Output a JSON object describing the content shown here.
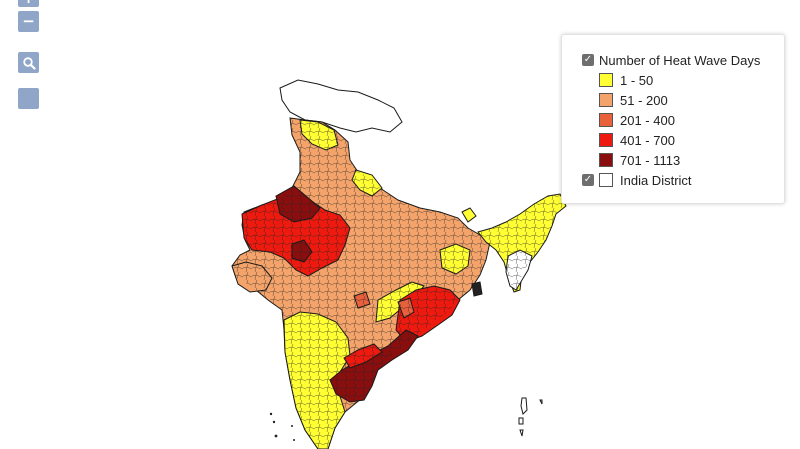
{
  "map": {
    "controls": {
      "zoom_in_glyph": "+",
      "zoom_out_glyph": "−",
      "zoom_box_icon": "magnifier-icon",
      "layer_icon": "layer-icon"
    },
    "legend": {
      "title": "Number of Heat Wave Days",
      "title_checked": true,
      "classes": [
        {
          "label": "1 - 50",
          "color": "#ffff33"
        },
        {
          "label": "51 - 200",
          "color": "#f4a46a"
        },
        {
          "label": "201 - 400",
          "color": "#e8603c"
        },
        {
          "label": "401 - 700",
          "color": "#ef1a0f"
        },
        {
          "label": "701 - 1113",
          "color": "#8a0e0e"
        }
      ],
      "district_layer": {
        "label": "India District",
        "checked": true,
        "color": "#ffffff"
      }
    },
    "colors": {
      "boundary": "#1a1a1a",
      "control": "#8fa6c8",
      "legend_border": "#e2e2e2"
    }
  }
}
